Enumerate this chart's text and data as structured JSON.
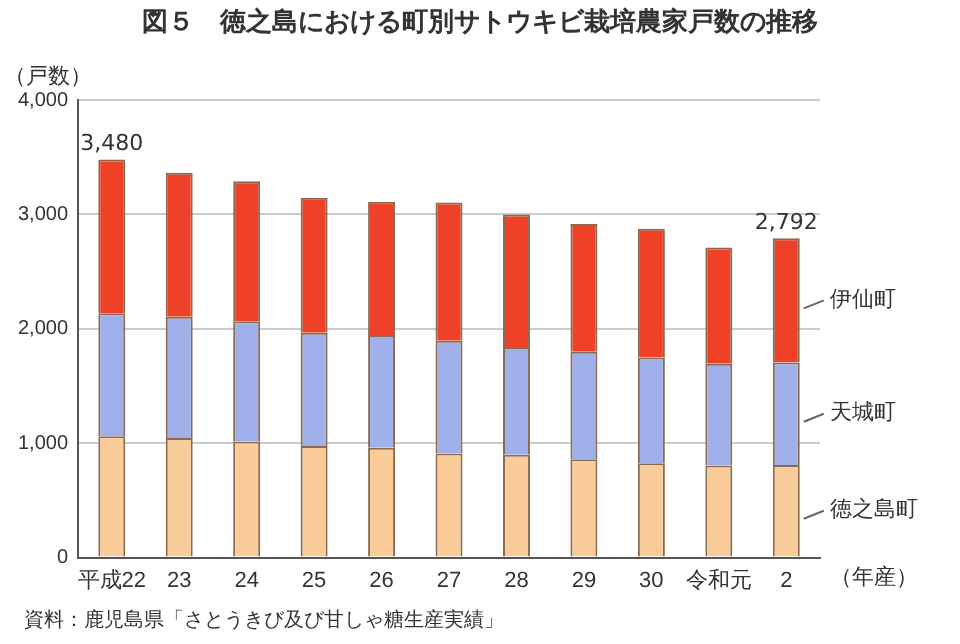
{
  "chart_data": {
    "type": "bar",
    "stacked": true,
    "title": "図５　徳之島における町別サトウキビ栽培農家戸数の推移",
    "ylabel": "（戸数）",
    "xlabel": "（年産）",
    "categories": [
      "平成22",
      "23",
      "24",
      "25",
      "26",
      "27",
      "28",
      "29",
      "30",
      "令和元",
      "2"
    ],
    "series": [
      {
        "name": "徳之島町",
        "color": "#f9cc9a",
        "values": [
          1060,
          1045,
          1015,
          975,
          960,
          910,
          900,
          860,
          825,
          805,
          810
        ]
      },
      {
        "name": "天城町",
        "color": "#9fb0ea",
        "values": [
          1075,
          1060,
          1050,
          990,
          985,
          985,
          940,
          940,
          925,
          890,
          895
        ]
      },
      {
        "name": "伊仙町",
        "color": "#ee4127",
        "values": [
          1345,
          1260,
          1225,
          1180,
          1165,
          1210,
          1160,
          1115,
          1125,
          1015,
          1087
        ]
      }
    ],
    "totals": [
      "3,480",
      null,
      null,
      null,
      null,
      null,
      null,
      null,
      null,
      null,
      "2,792"
    ],
    "ylim": [
      0,
      4000
    ],
    "yticks": [
      0,
      {
        "value": 1000,
        "label": "1,000"
      },
      {
        "value": 2000,
        "label": "2,000"
      },
      {
        "value": 3000,
        "label": "3,000"
      },
      {
        "value": 4000,
        "label": "4,000"
      }
    ],
    "grid": "y",
    "annotations": [
      "資料：鹿児島県「さとうきび及び甘しゃ糖生産実績」"
    ]
  }
}
